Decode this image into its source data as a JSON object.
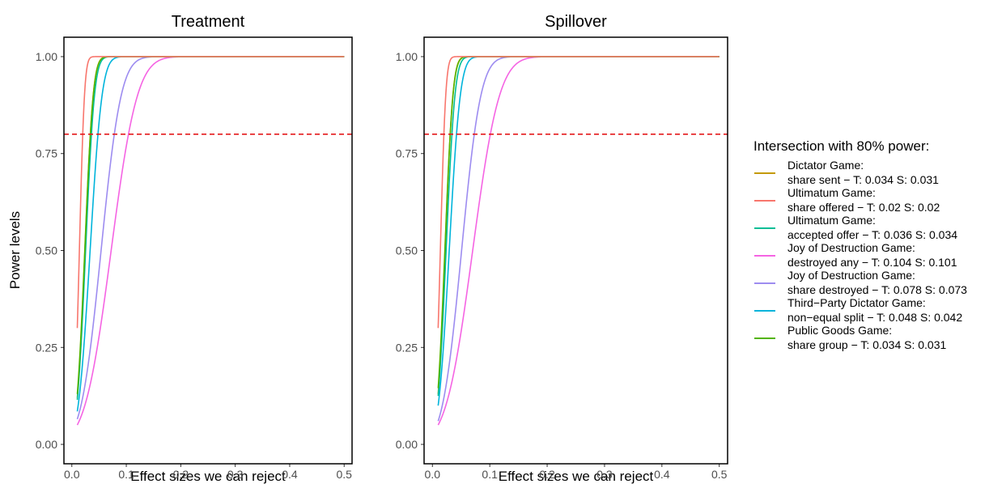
{
  "chart_data": {
    "type": "line",
    "ylabel": "Power levels",
    "reference_line": {
      "y": 0.8,
      "color": "#e41a1c",
      "style": "dashed"
    },
    "xlim": [
      0.01,
      0.5
    ],
    "ylim": [
      0,
      1
    ],
    "x_ticks": [
      "0.0",
      "0.1",
      "0.2",
      "0.3",
      "0.4",
      "0.5"
    ],
    "y_ticks": [
      "0.00",
      "0.25",
      "0.50",
      "0.75",
      "1.00"
    ],
    "legend": {
      "title": "Intersection with 80% power:",
      "placement": "right",
      "entries": [
        {
          "line1": "Dictator Game:",
          "line2": "share sent − T: 0.034 S: 0.031",
          "color": "#C49A00"
        },
        {
          "line1": "Ultimatum Game:",
          "line2": "share offered − T: 0.02 S: 0.02",
          "color": "#F8766D"
        },
        {
          "line1": "Ultimatum Game:",
          "line2": "accepted offer − T: 0.036 S: 0.034",
          "color": "#00BE96"
        },
        {
          "line1": "Joy of Destruction Game:",
          "line2": "destroyed any − T: 0.104 S: 0.101",
          "color": "#F564E3"
        },
        {
          "line1": "Joy of Destruction Game:",
          "line2": "share destroyed − T: 0.078 S: 0.073",
          "color": "#9D8CF0"
        },
        {
          "line1": "Third−Party Dictator Game:",
          "line2": "non−equal split − T: 0.048 S: 0.042",
          "color": "#00B4DB"
        },
        {
          "line1": "Public Goods Game:",
          "line2": "share group − T: 0.034 S: 0.031",
          "color": "#53B400"
        }
      ]
    },
    "panels": [
      {
        "title": "Treatment",
        "xlabel": "Effect sizes we can reject",
        "series": [
          {
            "color": "#9D8CF0",
            "power_at_001": 0.065,
            "mde80": 0.078
          },
          {
            "color": "#F564E3",
            "power_at_001": 0.05,
            "mde80": 0.104
          },
          {
            "color": "#00B4DB",
            "power_at_001": 0.085,
            "mde80": 0.048
          },
          {
            "color": "#C49A00",
            "power_at_001": 0.12,
            "mde80": 0.034
          },
          {
            "color": "#00BE96",
            "power_at_001": 0.115,
            "mde80": 0.036
          },
          {
            "color": "#53B400",
            "power_at_001": 0.13,
            "mde80": 0.034
          },
          {
            "color": "#F8766D",
            "power_at_001": 0.3,
            "mde80": 0.02
          }
        ]
      },
      {
        "title": "Spillover",
        "xlabel": "Effect sizes we can reject",
        "series": [
          {
            "color": "#9D8CF0",
            "power_at_001": 0.06,
            "mde80": 0.073
          },
          {
            "color": "#F564E3",
            "power_at_001": 0.05,
            "mde80": 0.101
          },
          {
            "color": "#00B4DB",
            "power_at_001": 0.1,
            "mde80": 0.042
          },
          {
            "color": "#C49A00",
            "power_at_001": 0.13,
            "mde80": 0.031
          },
          {
            "color": "#00BE96",
            "power_at_001": 0.125,
            "mde80": 0.034
          },
          {
            "color": "#53B400",
            "power_at_001": 0.145,
            "mde80": 0.031
          },
          {
            "color": "#F8766D",
            "power_at_001": 0.3,
            "mde80": 0.02
          }
        ]
      }
    ]
  }
}
